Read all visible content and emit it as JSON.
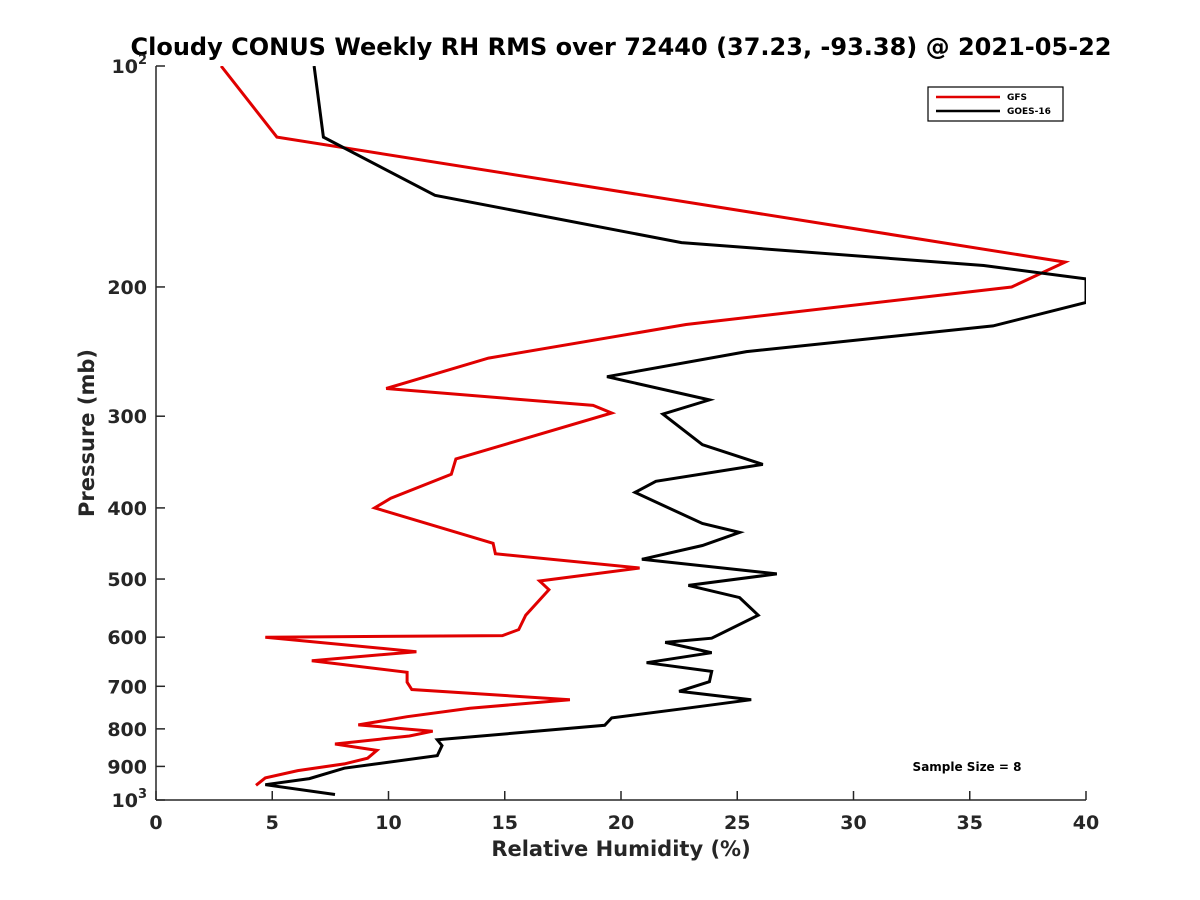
{
  "chart_data": {
    "type": "line",
    "title": "Cloudy CONUS Weekly RH RMS over 72440 (37.23, -93.38) @ 2021-05-22",
    "xlabel": "Relative Humidity (%)",
    "ylabel": "Pressure (mb)",
    "xlim": [
      0,
      40
    ],
    "ylim": [
      100,
      1000
    ],
    "y_scale": "log",
    "y_reversed": true,
    "grid": false,
    "legend_position": "top-right",
    "x_ticks": [
      0,
      5,
      10,
      15,
      20,
      25,
      30,
      35,
      40
    ],
    "x_tick_labels": [
      "0",
      "5",
      "10",
      "15",
      "20",
      "25",
      "30",
      "35",
      "40"
    ],
    "y_ticks": [
      100,
      200,
      300,
      400,
      500,
      600,
      700,
      800,
      900,
      1000
    ],
    "y_tick_labels": [
      {
        "base": "10",
        "exp": "2"
      },
      {
        "base": "200",
        "exp": ""
      },
      {
        "base": "300",
        "exp": ""
      },
      {
        "base": "400",
        "exp": ""
      },
      {
        "base": "500",
        "exp": ""
      },
      {
        "base": "600",
        "exp": ""
      },
      {
        "base": "700",
        "exp": ""
      },
      {
        "base": "800",
        "exp": ""
      },
      {
        "base": "900",
        "exp": ""
      },
      {
        "base": "10",
        "exp": "3"
      }
    ],
    "annotation": "Sample Size = 8",
    "series": [
      {
        "name": "GFS",
        "color": "#e00000",
        "points": [
          [
            2.8,
            100
          ],
          [
            5.2,
            125
          ],
          [
            39.1,
            185
          ],
          [
            36.8,
            200
          ],
          [
            22.8,
            225
          ],
          [
            14.3,
            250
          ],
          [
            9.9,
            275
          ],
          [
            18.8,
            290
          ],
          [
            19.6,
            297
          ],
          [
            12.9,
            343
          ],
          [
            12.7,
            360
          ],
          [
            10.1,
            388
          ],
          [
            9.4,
            400
          ],
          [
            14.5,
            447
          ],
          [
            14.6,
            462
          ],
          [
            20.8,
            483
          ],
          [
            16.5,
            503
          ],
          [
            16.9,
            517
          ],
          [
            15.9,
            560
          ],
          [
            15.6,
            586
          ],
          [
            14.9,
            597
          ],
          [
            4.7,
            600
          ],
          [
            11.2,
            628
          ],
          [
            6.7,
            646
          ],
          [
            10.8,
            670
          ],
          [
            10.8,
            691
          ],
          [
            11.0,
            707
          ],
          [
            17.8,
            730
          ],
          [
            13.5,
            750
          ],
          [
            10.8,
            770
          ],
          [
            8.7,
            790
          ],
          [
            11.9,
            806
          ],
          [
            10.9,
            818
          ],
          [
            7.7,
            839
          ],
          [
            9.5,
            856
          ],
          [
            9.1,
            877
          ],
          [
            8.1,
            893
          ],
          [
            6.1,
            912
          ],
          [
            4.7,
            933
          ],
          [
            4.3,
            955
          ]
        ]
      },
      {
        "name": "GOES-16",
        "color": "#000000",
        "points": [
          [
            6.8,
            100
          ],
          [
            7.2,
            125
          ],
          [
            12.0,
            150
          ],
          [
            22.6,
            174
          ],
          [
            35.6,
            187
          ],
          [
            40.0,
            195
          ],
          [
            40.0,
            205
          ],
          [
            40.0,
            210
          ],
          [
            36.0,
            226
          ],
          [
            25.4,
            245
          ],
          [
            19.4,
            265
          ],
          [
            23.8,
            285
          ],
          [
            21.8,
            298
          ],
          [
            23.5,
            328
          ],
          [
            26.1,
            349
          ],
          [
            21.5,
            368
          ],
          [
            20.6,
            381
          ],
          [
            23.5,
            420
          ],
          [
            25.1,
            432
          ],
          [
            23.5,
            450
          ],
          [
            20.9,
            470
          ],
          [
            26.7,
            492
          ],
          [
            22.9,
            510
          ],
          [
            25.1,
            530
          ],
          [
            25.9,
            560
          ],
          [
            23.9,
            602
          ],
          [
            21.9,
            610
          ],
          [
            23.9,
            630
          ],
          [
            21.1,
            650
          ],
          [
            23.9,
            668
          ],
          [
            23.8,
            690
          ],
          [
            22.5,
            711
          ],
          [
            25.6,
            730
          ],
          [
            22.8,
            750
          ],
          [
            19.6,
            773
          ],
          [
            19.3,
            791
          ],
          [
            12.1,
            828
          ],
          [
            12.3,
            843
          ],
          [
            12.1,
            870
          ],
          [
            8.1,
            905
          ],
          [
            6.6,
            935
          ],
          [
            4.7,
            953
          ],
          [
            7.7,
            983
          ]
        ]
      }
    ]
  }
}
